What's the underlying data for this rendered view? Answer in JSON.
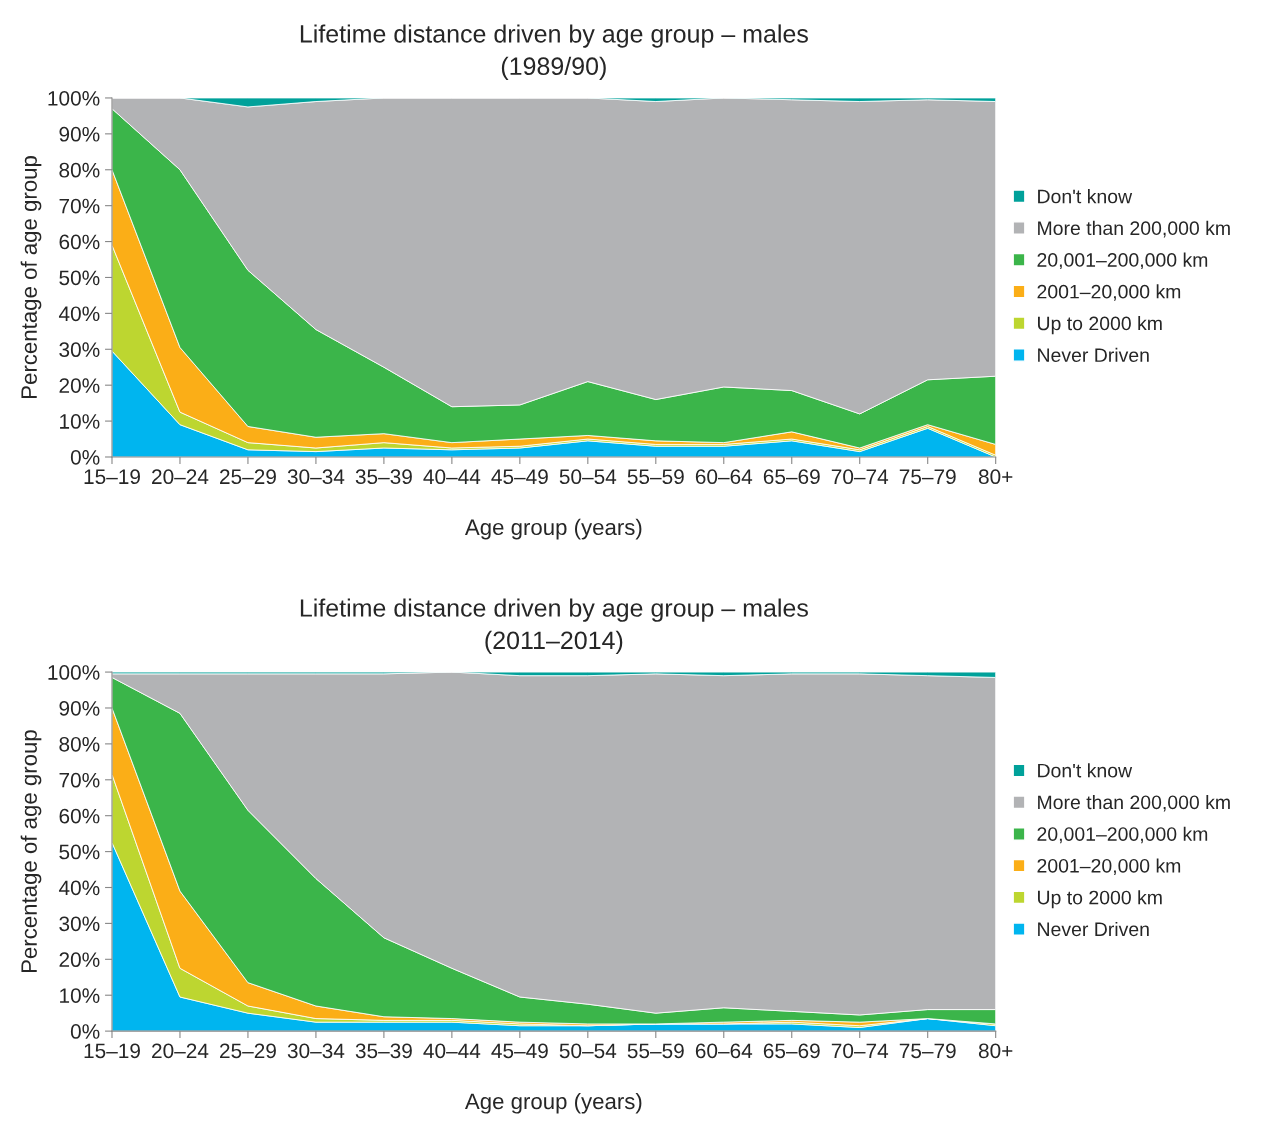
{
  "chart_data": [
    {
      "type": "area",
      "stacked": true,
      "title": "Lifetime distance driven by age group – males",
      "subtitle": "(1989/90)",
      "xlabel": "Age group (years)",
      "ylabel": "Percentage of age group",
      "categories": [
        "15–19",
        "20–24",
        "25–29",
        "30–34",
        "35–39",
        "40–44",
        "45–49",
        "50–54",
        "55–59",
        "60–64",
        "65–69",
        "70–74",
        "75–79",
        "80+"
      ],
      "ylim": [
        0,
        100
      ],
      "yticks": [
        {
          "value": 0,
          "label": "0%"
        },
        {
          "value": 10,
          "label": "10%"
        },
        {
          "value": 20,
          "label": "20%"
        },
        {
          "value": 30,
          "label": "30%"
        },
        {
          "value": 40,
          "label": "40%"
        },
        {
          "value": 50,
          "label": "50%"
        },
        {
          "value": 60,
          "label": "60%"
        },
        {
          "value": 70,
          "label": "70%"
        },
        {
          "value": 80,
          "label": "80%"
        },
        {
          "value": 90,
          "label": "90%"
        },
        {
          "value": 100,
          "label": "100%"
        }
      ],
      "grid": false,
      "legend": "right",
      "series": [
        {
          "name": "Never Driven",
          "color": "#00b5ef",
          "values": [
            29.5,
            9,
            2,
            1.5,
            2.5,
            2,
            2.5,
            4.5,
            3,
            3,
            4.5,
            1.5,
            8,
            0
          ]
        },
        {
          "name": "Up to 2000 km",
          "color": "#bdd630",
          "values": [
            29.5,
            3.5,
            2,
            1,
            1.5,
            0.5,
            0.5,
            0.5,
            0.5,
            0.5,
            0.5,
            0.5,
            0.5,
            0.5
          ]
        },
        {
          "name": "2001–20,000 km",
          "color": "#fbae17",
          "values": [
            21,
            18,
            4.5,
            3,
            2.5,
            1.5,
            2,
            1,
            1,
            0.5,
            2,
            0.5,
            0.5,
            3
          ]
        },
        {
          "name": "20,001–200,000 km",
          "color": "#3bb54a",
          "values": [
            17,
            49.5,
            43.5,
            30,
            18.5,
            10,
            9.5,
            15,
            11.5,
            15.5,
            11.5,
            9.5,
            12.5,
            19
          ]
        },
        {
          "name": "More than 200,000 km",
          "color": "#b2b3b5",
          "values": [
            3,
            20,
            45.5,
            63.5,
            75,
            86,
            85.5,
            79,
            83,
            80.5,
            81,
            87,
            78,
            76.5
          ]
        },
        {
          "name": "Don't know",
          "color": "#00a19a",
          "values": [
            0,
            0,
            2.5,
            1,
            0,
            0,
            0,
            0,
            1,
            0,
            0.5,
            1,
            0.5,
            1
          ]
        }
      ]
    },
    {
      "type": "area",
      "stacked": true,
      "title": "Lifetime distance driven by age group – males",
      "subtitle": "(2011–2014)",
      "xlabel": "Age group (years)",
      "ylabel": "Percentage of age group",
      "categories": [
        "15–19",
        "20–24",
        "25–29",
        "30–34",
        "35–39",
        "40–44",
        "45–49",
        "50–54",
        "55–59",
        "60–64",
        "65–69",
        "70–74",
        "75–79",
        "80+"
      ],
      "ylim": [
        0,
        100
      ],
      "yticks": [
        {
          "value": 0,
          "label": "0%"
        },
        {
          "value": 10,
          "label": "10%"
        },
        {
          "value": 20,
          "label": "20%"
        },
        {
          "value": 30,
          "label": "30%"
        },
        {
          "value": 40,
          "label": "40%"
        },
        {
          "value": 50,
          "label": "50%"
        },
        {
          "value": 60,
          "label": "60%"
        },
        {
          "value": 70,
          "label": "70%"
        },
        {
          "value": 80,
          "label": "80%"
        },
        {
          "value": 90,
          "label": "90%"
        },
        {
          "value": 100,
          "label": "100%"
        }
      ],
      "grid": false,
      "legend": "right",
      "series": [
        {
          "name": "Never Driven",
          "color": "#00b5ef",
          "values": [
            52.5,
            9.5,
            5,
            2.5,
            2.5,
            2.5,
            1.5,
            1.5,
            2,
            2,
            2,
            1,
            3.5,
            1.5
          ]
        },
        {
          "name": "Up to 2000 km",
          "color": "#bdd630",
          "values": [
            19,
            8,
            2,
            1,
            0.5,
            0.5,
            0.5,
            0,
            0,
            0,
            0.5,
            0.5,
            0,
            0.5
          ]
        },
        {
          "name": "2001–20,000 km",
          "color": "#fbae17",
          "values": [
            18.5,
            21.5,
            6.5,
            3.5,
            1,
            0.5,
            0.5,
            0.5,
            0,
            0.5,
            0.5,
            1,
            0,
            0
          ]
        },
        {
          "name": "20,001–200,000 km",
          "color": "#3bb54a",
          "values": [
            8.5,
            49.5,
            48,
            35.5,
            22,
            14,
            7,
            5.5,
            3,
            4,
            2.5,
            2,
            2.5,
            4
          ]
        },
        {
          "name": "More than 200,000 km",
          "color": "#b2b3b5",
          "values": [
            1,
            11,
            38,
            57,
            73.5,
            82.5,
            89.5,
            91.5,
            94.5,
            92.5,
            94,
            95,
            93,
            92.5
          ]
        },
        {
          "name": "Don't know",
          "color": "#00a19a",
          "values": [
            0.5,
            0.5,
            0.5,
            0.5,
            0.5,
            0,
            1,
            1,
            0.5,
            1,
            0.5,
            0.5,
            1,
            1.5
          ]
        }
      ]
    }
  ]
}
